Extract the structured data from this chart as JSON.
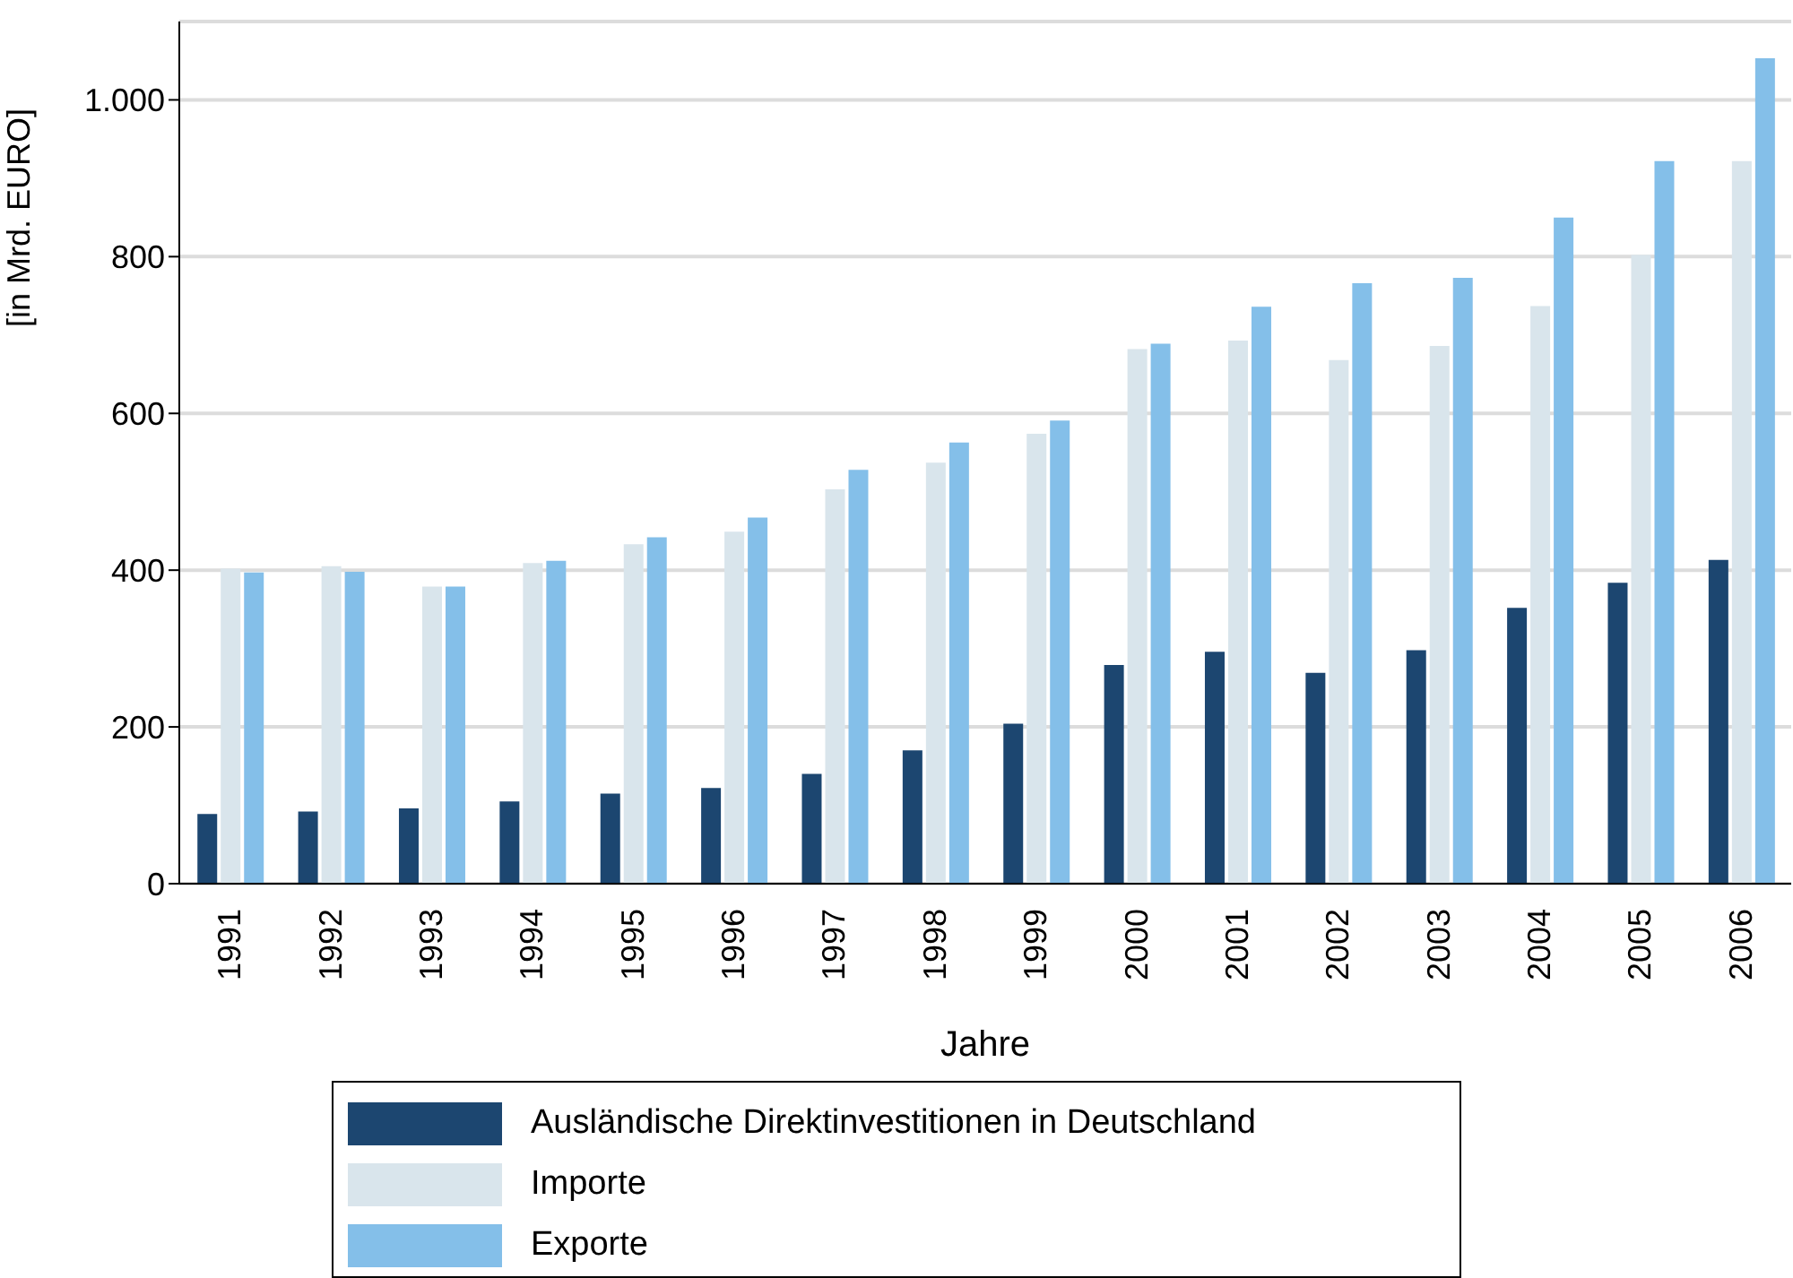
{
  "chart_data": {
    "type": "bar",
    "xlabel": "Jahre",
    "ylabel": "[in Mrd. EURO]",
    "categories": [
      "1991",
      "1992",
      "1993",
      "1994",
      "1995",
      "1996",
      "1997",
      "1998",
      "1999",
      "2000",
      "2001",
      "2002",
      "2003",
      "2004",
      "2005",
      "2006"
    ],
    "series": [
      {
        "name": "Ausländische Direktinvestitionen in Deutschland",
        "color": "#1c4670",
        "values": [
          89,
          92,
          96,
          105,
          115,
          122,
          140,
          170,
          204,
          279,
          296,
          269,
          298,
          352,
          384,
          413
        ]
      },
      {
        "name": "Importe",
        "color": "#d9e5ec",
        "values": [
          402,
          405,
          379,
          409,
          433,
          449,
          503,
          537,
          574,
          682,
          693,
          668,
          686,
          737,
          802,
          922
        ]
      },
      {
        "name": "Exporte",
        "color": "#84bfe9",
        "values": [
          397,
          398,
          379,
          412,
          442,
          467,
          528,
          563,
          591,
          689,
          736,
          766,
          773,
          850,
          922,
          1053
        ]
      }
    ],
    "ylim": [
      0,
      1100
    ],
    "yticks": [
      0,
      {
        "value": 200,
        "label": "200"
      },
      {
        "value": 400,
        "label": "400"
      },
      {
        "value": 600,
        "label": "600"
      },
      {
        "value": 800,
        "label": "800"
      },
      {
        "value": 1000,
        "label": "1.000"
      }
    ],
    "grid": "y",
    "legend": "bottom"
  }
}
